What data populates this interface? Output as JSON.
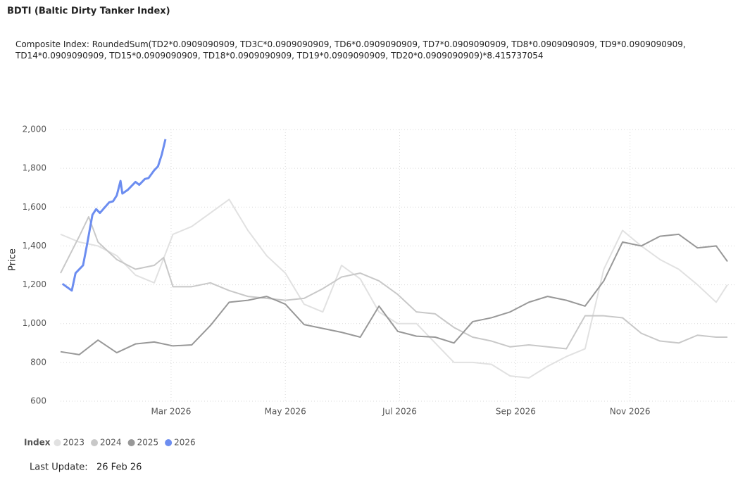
{
  "chart_data": {
    "type": "line",
    "title": "BDTI (Baltic Dirty Tanker Index)",
    "subtitle": "Composite Index: RoundedSum(TD2*0.0909090909, TD3C*0.0909090909, TD6*0.0909090909, TD7*0.0909090909, TD8*0.0909090909, TD9*0.0909090909, TD14*0.0909090909, TD15*0.0909090909, TD18*0.0909090909, TD19*0.0909090909, TD20*0.0909090909)*8.415737054",
    "y_label": "Price",
    "legend_title": "Index",
    "legend": "bottom-left",
    "grid": true,
    "xlim": [
      0,
      356
    ],
    "xticks": [
      {
        "value": 59,
        "label": "Mar 2026"
      },
      {
        "value": 120,
        "label": "May 2026"
      },
      {
        "value": 181,
        "label": "Jul 2026"
      },
      {
        "value": 243,
        "label": "Sep 2026"
      },
      {
        "value": 304,
        "label": "Nov 2026"
      }
    ],
    "ylim": [
      600,
      2000
    ],
    "yticks": [
      {
        "value": 600,
        "label": "600"
      },
      {
        "value": 800,
        "label": "800"
      },
      {
        "value": 1000,
        "label": "1,000"
      },
      {
        "value": 1200,
        "label": "1,200"
      },
      {
        "value": 1400,
        "label": "1,400"
      },
      {
        "value": 1600,
        "label": "1,600"
      },
      {
        "value": 1800,
        "label": "1,800"
      },
      {
        "value": 2000,
        "label": "2,000"
      }
    ],
    "series": [
      {
        "name": "2023",
        "color": "#e1e1e1",
        "x": [
          0,
          10,
          20,
          30,
          40,
          50,
          60,
          70,
          80,
          90,
          100,
          110,
          120,
          130,
          140,
          150,
          160,
          170,
          180,
          190,
          200,
          210,
          220,
          230,
          240,
          250,
          260,
          270,
          280,
          290,
          300,
          310,
          320,
          330,
          340,
          350,
          356
        ],
        "values": [
          1460,
          1420,
          1400,
          1350,
          1250,
          1210,
          1460,
          1500,
          1570,
          1640,
          1480,
          1350,
          1260,
          1100,
          1060,
          1300,
          1230,
          1060,
          1000,
          1000,
          900,
          800,
          800,
          790,
          730,
          720,
          780,
          830,
          870,
          1280,
          1480,
          1400,
          1330,
          1280,
          1200,
          1110,
          1200
        ]
      },
      {
        "name": "2024",
        "color": "#c8c8c8",
        "x": [
          0,
          10,
          15,
          20,
          30,
          40,
          50,
          55,
          60,
          70,
          80,
          90,
          100,
          110,
          120,
          130,
          140,
          150,
          160,
          170,
          180,
          190,
          200,
          210,
          220,
          230,
          240,
          250,
          260,
          270,
          280,
          290,
          300,
          310,
          320,
          330,
          340,
          350,
          356
        ],
        "values": [
          1260,
          1450,
          1550,
          1420,
          1330,
          1280,
          1300,
          1340,
          1190,
          1190,
          1210,
          1170,
          1140,
          1130,
          1120,
          1130,
          1180,
          1240,
          1260,
          1220,
          1150,
          1060,
          1050,
          980,
          930,
          910,
          880,
          890,
          880,
          870,
          1040,
          1040,
          1030,
          950,
          910,
          900,
          940,
          930,
          930
        ]
      },
      {
        "name": "2025",
        "color": "#989898",
        "x": [
          0,
          10,
          20,
          30,
          40,
          50,
          60,
          70,
          80,
          90,
          100,
          110,
          120,
          130,
          140,
          150,
          160,
          170,
          180,
          190,
          200,
          210,
          220,
          230,
          240,
          250,
          260,
          270,
          280,
          290,
          300,
          310,
          320,
          330,
          340,
          350,
          356
        ],
        "values": [
          855,
          840,
          915,
          850,
          895,
          905,
          885,
          890,
          990,
          1110,
          1120,
          1140,
          1100,
          995,
          975,
          955,
          930,
          1090,
          960,
          935,
          930,
          900,
          1010,
          1030,
          1060,
          1110,
          1140,
          1120,
          1090,
          1220,
          1420,
          1400,
          1450,
          1460,
          1390,
          1400,
          1320
        ]
      },
      {
        "name": "2026",
        "color": "#6c8df0",
        "x": [
          1,
          6,
          8,
          12,
          14,
          17,
          19,
          21,
          26,
          28,
          30,
          32,
          33,
          36,
          40,
          42,
          45,
          47,
          50,
          52,
          54,
          56
        ],
        "values": [
          1205,
          1170,
          1260,
          1300,
          1400,
          1560,
          1590,
          1570,
          1625,
          1630,
          1660,
          1735,
          1670,
          1690,
          1730,
          1715,
          1745,
          1750,
          1790,
          1810,
          1870,
          1950
        ]
      }
    ],
    "last_update_label": "Last Update:",
    "last_update": "26 Feb 26"
  }
}
